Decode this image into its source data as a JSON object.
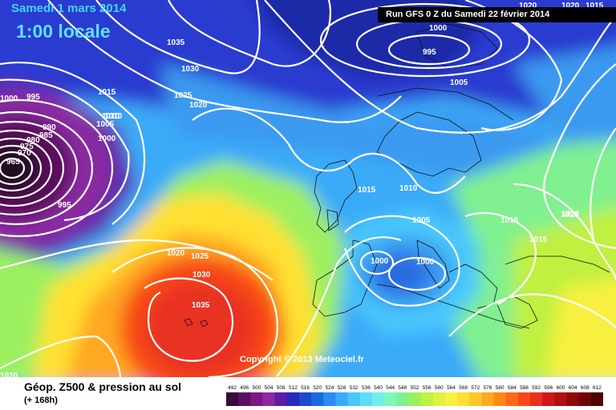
{
  "header": {
    "date": "Samedi 1 mars 2014",
    "time": "1:00 locale",
    "run": "Run GFS 0 Z du Samedi 22 février 2014"
  },
  "footer": {
    "title": "Géop. Z500 & pression au sol",
    "subtitle": "(+ 168h)",
    "copyright": "Copyright © 2013 Meteociel.fr"
  },
  "legend": {
    "values": [
      "492",
      "496",
      "500",
      "504",
      "508",
      "512",
      "516",
      "520",
      "524",
      "528",
      "532",
      "536",
      "540",
      "544",
      "548",
      "552",
      "556",
      "560",
      "564",
      "568",
      "572",
      "576",
      "580",
      "584",
      "588",
      "592",
      "596",
      "600",
      "604",
      "608",
      "612"
    ],
    "colors": [
      "#3a0a3a",
      "#5a1060",
      "#7a1a80",
      "#8c2aa0",
      "#5a1fa8",
      "#2a2ab8",
      "#1a4ad0",
      "#1a6ae0",
      "#2a8ef0",
      "#3aaaf8",
      "#4ac8fc",
      "#5adcff",
      "#6ef0e8",
      "#7af8c0",
      "#80f090",
      "#9cf060",
      "#c0f040",
      "#e0f040",
      "#f8f040",
      "#ffe030",
      "#ffc828",
      "#ffa820",
      "#ff8818",
      "#ff6818",
      "#f84818",
      "#e83020",
      "#d01818",
      "#b01010",
      "#900808",
      "#700404",
      "#500000"
    ]
  },
  "isobars": [
    {
      "label": "1035"
    },
    {
      "label": "1030"
    },
    {
      "label": "1025"
    },
    {
      "label": "1020"
    },
    {
      "label": "1015"
    },
    {
      "label": "1010"
    },
    {
      "label": "1005"
    },
    {
      "label": "1000"
    },
    {
      "label": "995"
    },
    {
      "label": "990"
    },
    {
      "label": "985"
    },
    {
      "label": "980"
    },
    {
      "label": "975"
    },
    {
      "label": "970"
    },
    {
      "label": "965"
    },
    {
      "label": "1000"
    },
    {
      "label": "995"
    },
    {
      "label": "1005"
    },
    {
      "label": "1020"
    },
    {
      "label": "1015"
    },
    {
      "label": "1010"
    },
    {
      "label": "1005"
    },
    {
      "label": "1000"
    },
    {
      "label": "1000"
    },
    {
      "label": "1015"
    },
    {
      "label": "1010"
    },
    {
      "label": "1020"
    },
    {
      "label": "1015"
    },
    {
      "label": "1020"
    },
    {
      "label": "1025"
    },
    {
      "label": "1030"
    },
    {
      "label": "1035"
    },
    {
      "label": "1020"
    },
    {
      "label": "995"
    },
    {
      "label": "1000"
    },
    {
      "label": "1010"
    },
    {
      "label": "1020"
    },
    {
      "label": "1020"
    }
  ]
}
